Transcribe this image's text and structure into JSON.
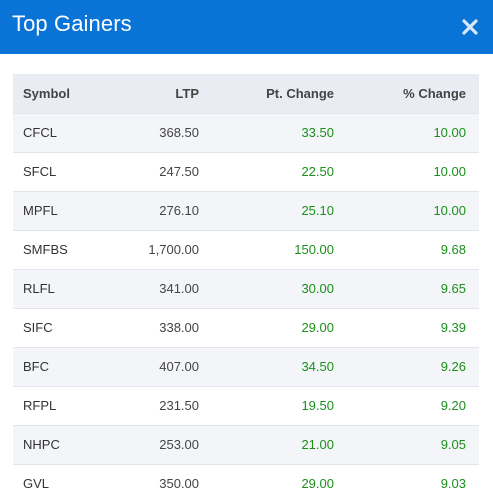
{
  "modal": {
    "title": "Top Gainers",
    "close_icon": "close-x-icon"
  },
  "colors": {
    "header_bg": "#0a74d6",
    "positive": "#1a8f1a",
    "row_alt": "#f3f5f8",
    "table_header_bg": "#e9edf3"
  },
  "table": {
    "headers": {
      "symbol": "Symbol",
      "ltp": "LTP",
      "pt_change": "Pt. Change",
      "pct_change": "% Change"
    },
    "rows": [
      {
        "symbol": "CFCL",
        "ltp": "368.50",
        "pt_change": "33.50",
        "pct_change": "10.00"
      },
      {
        "symbol": "SFCL",
        "ltp": "247.50",
        "pt_change": "22.50",
        "pct_change": "10.00"
      },
      {
        "symbol": "MPFL",
        "ltp": "276.10",
        "pt_change": "25.10",
        "pct_change": "10.00"
      },
      {
        "symbol": "SMFBS",
        "ltp": "1,700.00",
        "pt_change": "150.00",
        "pct_change": "9.68"
      },
      {
        "symbol": "RLFL",
        "ltp": "341.00",
        "pt_change": "30.00",
        "pct_change": "9.65"
      },
      {
        "symbol": "SIFC",
        "ltp": "338.00",
        "pt_change": "29.00",
        "pct_change": "9.39"
      },
      {
        "symbol": "BFC",
        "ltp": "407.00",
        "pt_change": "34.50",
        "pct_change": "9.26"
      },
      {
        "symbol": "RFPL",
        "ltp": "231.50",
        "pt_change": "19.50",
        "pct_change": "9.20"
      },
      {
        "symbol": "NHPC",
        "ltp": "253.00",
        "pt_change": "21.00",
        "pct_change": "9.05"
      },
      {
        "symbol": "GVL",
        "ltp": "350.00",
        "pt_change": "29.00",
        "pct_change": "9.03"
      }
    ]
  }
}
